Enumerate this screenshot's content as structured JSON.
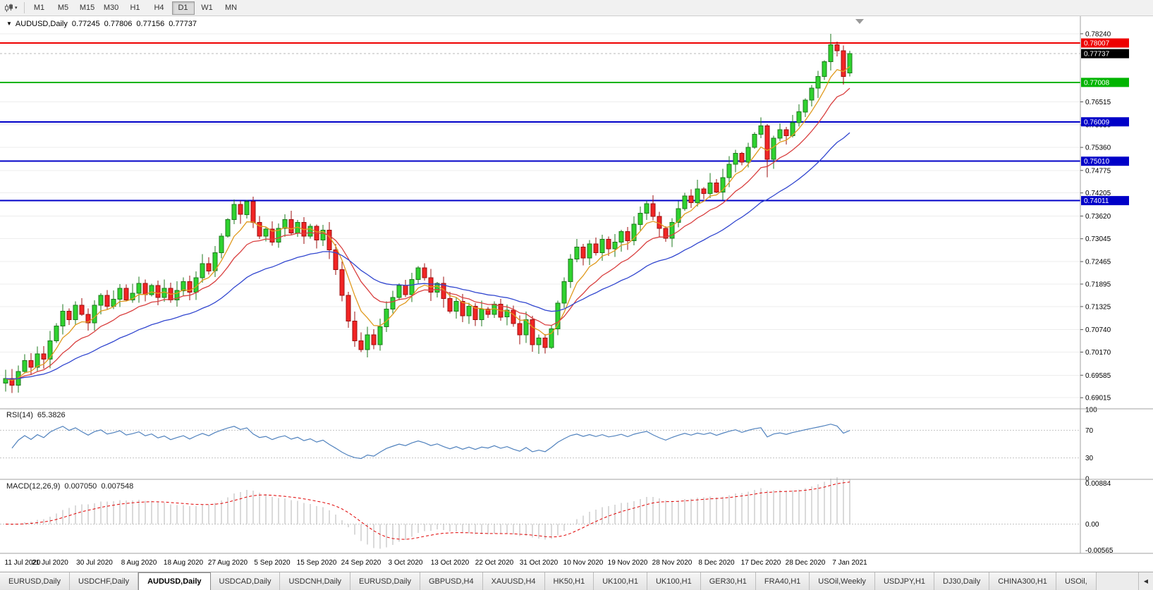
{
  "toolbar": {
    "timeframes": [
      "M1",
      "M5",
      "M15",
      "M30",
      "H1",
      "H4",
      "D1",
      "W1",
      "MN"
    ],
    "active_timeframe": "D1"
  },
  "window": {
    "symbol_period": "AUDUSD,Daily",
    "collapse_icon": "▼"
  },
  "quote": {
    "open": "0.77245",
    "high": "0.77806",
    "low": "0.77156",
    "close": "0.77737"
  },
  "indicators": {
    "rsi": {
      "label": "RSI(14)",
      "value": "65.3826",
      "period": 14,
      "ticks": [
        "100",
        "70",
        "30",
        "0"
      ],
      "levels": [
        70,
        30
      ],
      "line_color": "#4f81bd"
    },
    "macd": {
      "label": "MACD(12,26,9)",
      "values": [
        "0.007050",
        "0.007548"
      ],
      "ticks": [
        "0.00884",
        "0.00",
        "-0.00565"
      ],
      "ylim": [
        -0.0063,
        0.0095
      ],
      "histogram_color": "#b6b6b6",
      "signal_color": "#e00000"
    }
  },
  "chart_data": {
    "type": "candlestick",
    "title": "AUDUSD,Daily",
    "ylim": [
      0.6875,
      0.7865
    ],
    "y_ticks": [
      "0.78240",
      "0.76515",
      "0.75930",
      "0.75360",
      "0.74775",
      "0.74205",
      "0.73620",
      "0.73045",
      "0.72465",
      "0.71895",
      "0.71325",
      "0.70740",
      "0.70170",
      "0.69585",
      "0.69015"
    ],
    "x_labels": [
      "11 Jul 2020",
      "21 Jul 2020",
      "30 Jul 2020",
      "8 Aug 2020",
      "18 Aug 2020",
      "27 Aug 2020",
      "5 Sep 2020",
      "15 Sep 2020",
      "24 Sep 2020",
      "3 Oct 2020",
      "13 Oct 2020",
      "22 Oct 2020",
      "31 Oct 2020",
      "10 Nov 2020",
      "19 Nov 2020",
      "28 Nov 2020",
      "8 Dec 2020",
      "17 Dec 2020",
      "28 Dec 2020",
      "7 Jan 2021"
    ],
    "x_label_indices": [
      0,
      7,
      14,
      21,
      28,
      35,
      42,
      49,
      56,
      63,
      70,
      77,
      84,
      91,
      98,
      105,
      112,
      119,
      126,
      133
    ],
    "closes": [
      0.695,
      0.6933,
      0.6968,
      0.6996,
      0.6979,
      0.7013,
      0.6999,
      0.7046,
      0.7083,
      0.7121,
      0.7099,
      0.7136,
      0.7113,
      0.7091,
      0.7136,
      0.7161,
      0.7133,
      0.7151,
      0.7179,
      0.7149,
      0.7166,
      0.7191,
      0.7163,
      0.7186,
      0.7156,
      0.7179,
      0.7149,
      0.7173,
      0.7196,
      0.7169,
      0.7206,
      0.7241,
      0.7223,
      0.7269,
      0.7311,
      0.7353,
      0.7391,
      0.7366,
      0.7399,
      0.7346,
      0.7311,
      0.7329,
      0.7296,
      0.7331,
      0.7353,
      0.7319,
      0.7346,
      0.7311,
      0.7336,
      0.7301,
      0.7326,
      0.7276,
      0.7226,
      0.7161,
      0.7096,
      0.7046,
      0.7023,
      0.7061,
      0.7036,
      0.7081,
      0.7126,
      0.7156,
      0.7186,
      0.7163,
      0.7201,
      0.7231,
      0.7206,
      0.7169,
      0.7191,
      0.7153,
      0.7121,
      0.7146,
      0.7109,
      0.7133,
      0.7099,
      0.7126,
      0.7113,
      0.7139,
      0.7106,
      0.7123,
      0.7089,
      0.7061,
      0.7099,
      0.7036,
      0.7053,
      0.7029,
      0.7076,
      0.7141,
      0.7196,
      0.7253,
      0.7283,
      0.7256,
      0.7291,
      0.7269,
      0.7303,
      0.7279,
      0.7296,
      0.7323,
      0.7299,
      0.7341,
      0.7369,
      0.7393,
      0.7361,
      0.7331,
      0.7306,
      0.7346,
      0.7381,
      0.7413,
      0.7396,
      0.7431,
      0.7419,
      0.7446,
      0.7423,
      0.7459,
      0.7493,
      0.7521,
      0.7499,
      0.7536,
      0.7569,
      0.7591,
      0.7506,
      0.7559,
      0.7581,
      0.7566,
      0.7599,
      0.7626,
      0.7656,
      0.7686,
      0.7716,
      0.7753,
      0.7796,
      0.7781,
      0.7716,
      0.77737
    ],
    "open_rule": "previous_close",
    "last_candle_ohlc": [
      0.77245,
      0.77806,
      0.77156,
      0.77737
    ],
    "wick_overrides": {
      "high": {
        "130": 0.7824
      },
      "low": {
        "120": 0.746
      }
    },
    "up_color": "#2fd32f",
    "up_border": "#1e7a1e",
    "down_color": "#f22525",
    "down_border": "#9e0f0f",
    "moving_averages": [
      {
        "name": "fast-ma",
        "period": 6,
        "color": "#e09a1e"
      },
      {
        "name": "medium-ma",
        "period": 13,
        "color": "#d94040"
      },
      {
        "name": "slow-ma",
        "period": 30,
        "color": "#3146cf"
      }
    ],
    "levels": [
      {
        "price": "0.78007",
        "color": "#ee0000"
      },
      {
        "price": "0.77008",
        "color": "#00b400"
      },
      {
        "price": "0.76009",
        "color": "#0000c8"
      },
      {
        "price": "0.75010",
        "color": "#0000c8"
      },
      {
        "price": "0.74011",
        "color": "#0000c8"
      }
    ]
  },
  "tabs": {
    "items": [
      "EURUSD,Daily",
      "USDCHF,Daily",
      "AUDUSD,Daily",
      "USDCAD,Daily",
      "USDCNH,Daily",
      "EURUSD,Daily",
      "GBPUSD,H4",
      "XAUUSD,H4",
      "HK50,H1",
      "UK100,H1",
      "UK100,H1",
      "GER30,H1",
      "FRA40,H1",
      "USOil,Weekly",
      "USDJPY,H1",
      "DJ30,Daily",
      "CHINA300,H1",
      "USOil,"
    ],
    "active_index": 2,
    "scroll_icon": "◀"
  }
}
